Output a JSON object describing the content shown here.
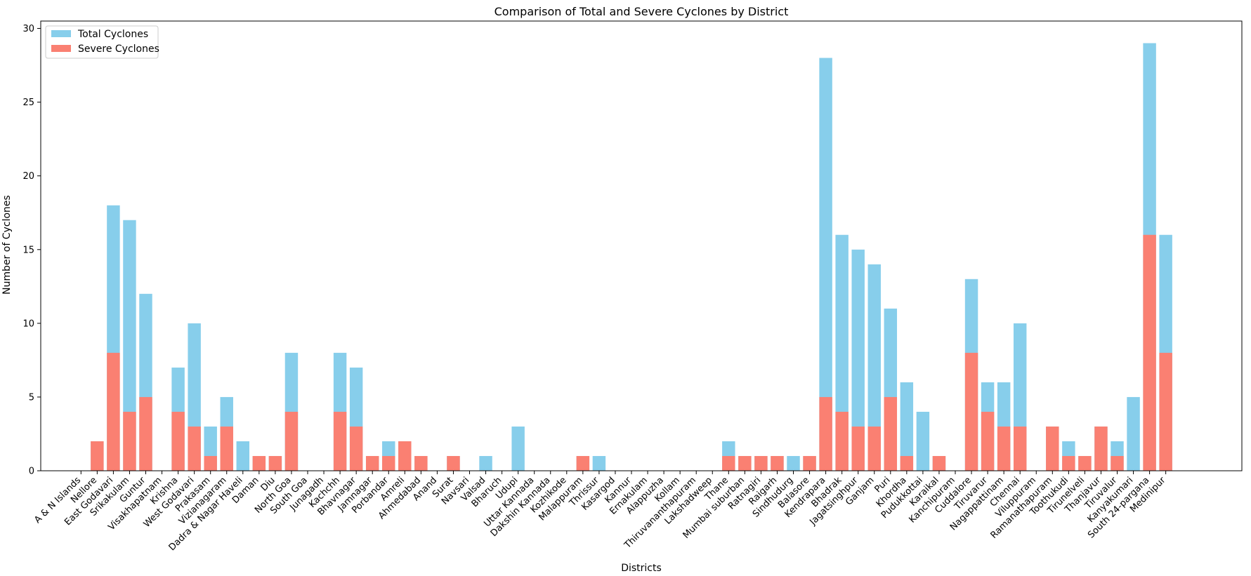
{
  "chart_data": {
    "type": "bar",
    "title": "Comparison of Total and Severe Cyclones by District",
    "xlabel": "Districts",
    "ylabel": "Number of Cyclones",
    "ylim": [
      0,
      30.5
    ],
    "yticks": [
      0,
      5,
      10,
      15,
      20,
      25,
      30
    ],
    "grid": false,
    "legend_position": "top-left",
    "bar_mode": "overlay",
    "categories": [
      "A & N Islands",
      "Nellore",
      "East Godavari",
      "Srikakulam",
      "Guntur",
      "Visakhapatnam",
      "Krishna",
      "West Godavari",
      "Prakasam",
      "Vizianagaram",
      "Dadra & Nagar Haveli",
      "Daman",
      "Diu",
      "North Goa",
      "South Goa",
      "Junagadh",
      "Kachchh",
      "Bhavnagar",
      "Jamnagar",
      "Porbandar",
      "Amreli",
      "Ahmedabad",
      "Anand",
      "Surat",
      "Navsari",
      "Valsad",
      "Bharuch",
      "Udupi",
      "Uttar Kannada",
      "Dakshin Kannada",
      "Kozhikode",
      "Malappuram",
      "Thrissur",
      "Kasargod",
      "Kannur",
      "Ernakulam",
      "Alappuzha",
      "Kollam",
      "Thiruvananthapuram",
      "Lakshadweep",
      "Thane",
      "Mumbai suburban",
      "Ratnagiri",
      "Raigarh",
      "Sindhudurg",
      "Balasore",
      "Kendrapara",
      "Bhadrak",
      "Jagatsinghpur",
      "Ganjam",
      "Puri",
      "Khordha",
      "Pudukkottai",
      "Karaikal",
      "Kanchipuram",
      "Cuddalore",
      "Tiruvarur",
      "Nagappattinam",
      "Chennai",
      "Viluppuram",
      "Ramanathapuram",
      "Toothukudi",
      "Tirunelveli",
      "Thanjavur",
      "Tiruvalur",
      "Kanyakumari",
      "South 24-pargana",
      "Medinipur"
    ],
    "series": [
      {
        "name": "Total Cyclones",
        "color": "#87CEEB",
        "values": [
          0,
          2,
          18,
          17,
          12,
          0,
          7,
          10,
          3,
          5,
          2,
          1,
          1,
          8,
          0,
          0,
          8,
          7,
          1,
          2,
          2,
          1,
          0,
          1,
          0,
          1,
          0,
          3,
          0,
          0,
          0,
          1,
          1,
          0,
          0,
          0,
          0,
          0,
          0,
          0,
          2,
          1,
          1,
          1,
          1,
          1,
          28,
          16,
          15,
          14,
          11,
          6,
          4,
          1,
          0,
          13,
          6,
          6,
          10,
          0,
          3,
          2,
          1,
          3,
          2,
          5,
          29,
          16
        ]
      },
      {
        "name": "Severe Cyclones",
        "color": "#FA8072",
        "values": [
          0,
          2,
          8,
          4,
          5,
          0,
          4,
          3,
          1,
          3,
          0,
          1,
          1,
          4,
          0,
          0,
          4,
          3,
          1,
          1,
          2,
          1,
          0,
          1,
          0,
          0,
          0,
          0,
          0,
          0,
          0,
          1,
          0,
          0,
          0,
          0,
          0,
          0,
          0,
          0,
          1,
          1,
          1,
          1,
          0,
          1,
          5,
          4,
          3,
          3,
          5,
          1,
          0,
          1,
          0,
          8,
          4,
          3,
          3,
          0,
          3,
          1,
          1,
          3,
          1,
          0,
          16,
          8
        ]
      }
    ]
  }
}
